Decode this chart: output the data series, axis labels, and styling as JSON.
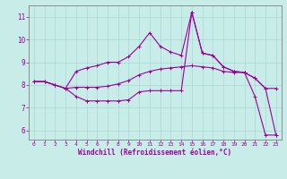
{
  "xlabel": "Windchill (Refroidissement éolien,°C)",
  "background_color": "#c8ece8",
  "grid_color": "#a8d8d4",
  "line_color": "#9c009c",
  "xlim": [
    -0.5,
    23.5
  ],
  "ylim": [
    5.6,
    11.5
  ],
  "xticks": [
    0,
    1,
    2,
    3,
    4,
    5,
    6,
    7,
    8,
    9,
    10,
    11,
    12,
    13,
    14,
    15,
    16,
    17,
    18,
    19,
    20,
    21,
    22,
    23
  ],
  "yticks": [
    6,
    7,
    8,
    9,
    10,
    11
  ],
  "curve1_x": [
    0,
    1,
    2,
    3,
    4,
    5,
    6,
    7,
    8,
    9,
    10,
    11,
    12,
    13,
    14,
    15,
    16,
    17,
    18,
    19,
    20,
    21,
    22,
    23
  ],
  "curve1_y": [
    8.15,
    8.15,
    8.0,
    7.85,
    7.5,
    7.3,
    7.3,
    7.3,
    7.3,
    7.35,
    7.7,
    7.75,
    7.75,
    7.75,
    7.75,
    11.2,
    9.4,
    9.3,
    8.8,
    8.6,
    8.55,
    7.5,
    5.8,
    5.8
  ],
  "curve2_x": [
    0,
    1,
    2,
    3,
    4,
    5,
    6,
    7,
    8,
    9,
    10,
    11,
    12,
    13,
    14,
    15,
    16,
    17,
    18,
    19,
    20,
    21,
    22,
    23
  ],
  "curve2_y": [
    8.15,
    8.15,
    8.0,
    7.85,
    7.9,
    7.9,
    7.9,
    7.95,
    8.05,
    8.2,
    8.45,
    8.6,
    8.7,
    8.75,
    8.8,
    8.85,
    8.8,
    8.75,
    8.6,
    8.55,
    8.55,
    8.3,
    7.85,
    7.85
  ],
  "curve3_x": [
    0,
    1,
    2,
    3,
    4,
    5,
    6,
    7,
    8,
    9,
    10,
    11,
    12,
    13,
    14,
    15,
    16,
    17,
    18,
    19,
    20,
    21,
    22,
    23
  ],
  "curve3_y": [
    8.15,
    8.15,
    8.0,
    7.85,
    8.6,
    8.75,
    8.85,
    9.0,
    9.0,
    9.25,
    9.7,
    10.3,
    9.7,
    9.45,
    9.3,
    11.2,
    9.4,
    9.3,
    8.8,
    8.6,
    8.55,
    8.3,
    7.85,
    5.8
  ]
}
